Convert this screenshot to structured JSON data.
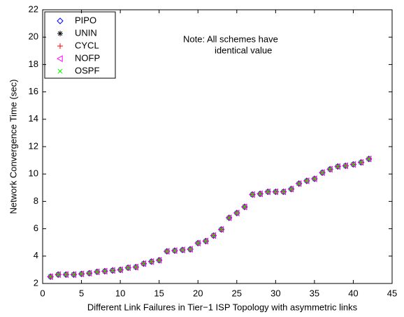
{
  "chart_data": {
    "type": "scatter",
    "xlabel": "Different Link Failures in Tier−1 ISP Topology with asymmetric links",
    "ylabel": "Network Convergence Time (sec)",
    "annotation": [
      "Note: All schemes have",
      "identical  value"
    ],
    "xlim": [
      0,
      45
    ],
    "ylim": [
      2,
      22
    ],
    "xticks": [
      0,
      5,
      10,
      15,
      20,
      25,
      30,
      35,
      40,
      45
    ],
    "yticks": [
      2,
      4,
      6,
      8,
      10,
      12,
      14,
      16,
      18,
      20,
      22
    ],
    "legend_position": "upper-left",
    "x": [
      1,
      2,
      3,
      4,
      5,
      6,
      7,
      8,
      9,
      10,
      11,
      12,
      13,
      14,
      15,
      16,
      17,
      18,
      19,
      20,
      21,
      22,
      23,
      24,
      25,
      26,
      27,
      28,
      29,
      30,
      31,
      32,
      33,
      34,
      35,
      36,
      37,
      38,
      39,
      40,
      41,
      42
    ],
    "series": [
      {
        "name": "PIPO",
        "color": "#0000ff",
        "marker": "diamond",
        "values": [
          2.5,
          2.65,
          2.65,
          2.65,
          2.7,
          2.75,
          2.85,
          2.9,
          2.95,
          3.0,
          3.15,
          3.2,
          3.45,
          3.6,
          3.7,
          4.35,
          4.4,
          4.45,
          4.5,
          4.95,
          5.1,
          5.5,
          5.95,
          6.8,
          7.15,
          7.6,
          8.5,
          8.55,
          8.7,
          8.7,
          8.7,
          8.9,
          9.3,
          9.5,
          9.65,
          10.1,
          10.35,
          10.55,
          10.6,
          10.7,
          10.85,
          11.1
        ]
      },
      {
        "name": "UNIN",
        "color": "#000000",
        "marker": "asterisk",
        "values": [
          2.5,
          2.65,
          2.65,
          2.65,
          2.7,
          2.75,
          2.85,
          2.9,
          2.95,
          3.0,
          3.15,
          3.2,
          3.45,
          3.6,
          3.7,
          4.35,
          4.4,
          4.45,
          4.5,
          4.95,
          5.1,
          5.5,
          5.95,
          6.8,
          7.15,
          7.6,
          8.5,
          8.55,
          8.7,
          8.7,
          8.7,
          8.9,
          9.3,
          9.5,
          9.65,
          10.1,
          10.35,
          10.55,
          10.6,
          10.7,
          10.85,
          11.1
        ]
      },
      {
        "name": "CYCL",
        "color": "#ff0000",
        "marker": "plus",
        "values": [
          2.5,
          2.65,
          2.65,
          2.65,
          2.7,
          2.75,
          2.85,
          2.9,
          2.95,
          3.0,
          3.15,
          3.2,
          3.45,
          3.6,
          3.7,
          4.35,
          4.4,
          4.45,
          4.5,
          4.95,
          5.1,
          5.5,
          5.95,
          6.8,
          7.15,
          7.6,
          8.5,
          8.55,
          8.7,
          8.7,
          8.7,
          8.9,
          9.3,
          9.5,
          9.65,
          10.1,
          10.35,
          10.55,
          10.6,
          10.7,
          10.85,
          11.1
        ]
      },
      {
        "name": "NOFP",
        "color": "#ff00ff",
        "marker": "triangle-left",
        "values": [
          2.5,
          2.65,
          2.65,
          2.65,
          2.7,
          2.75,
          2.85,
          2.9,
          2.95,
          3.0,
          3.15,
          3.2,
          3.45,
          3.6,
          3.7,
          4.35,
          4.4,
          4.45,
          4.5,
          4.95,
          5.1,
          5.5,
          5.95,
          6.8,
          7.15,
          7.6,
          8.5,
          8.55,
          8.7,
          8.7,
          8.7,
          8.9,
          9.3,
          9.5,
          9.65,
          10.1,
          10.35,
          10.55,
          10.6,
          10.7,
          10.85,
          11.1
        ]
      },
      {
        "name": "OSPF",
        "color": "#00ff00",
        "marker": "x",
        "values": [
          2.5,
          2.65,
          2.65,
          2.65,
          2.7,
          2.75,
          2.85,
          2.9,
          2.95,
          3.0,
          3.15,
          3.2,
          3.45,
          3.6,
          3.7,
          4.35,
          4.4,
          4.45,
          4.5,
          4.95,
          5.1,
          5.5,
          5.95,
          6.8,
          7.15,
          7.6,
          8.5,
          8.55,
          8.7,
          8.7,
          8.7,
          8.9,
          9.3,
          9.5,
          9.65,
          10.1,
          10.35,
          10.55,
          10.6,
          10.7,
          10.85,
          11.1
        ]
      }
    ]
  }
}
